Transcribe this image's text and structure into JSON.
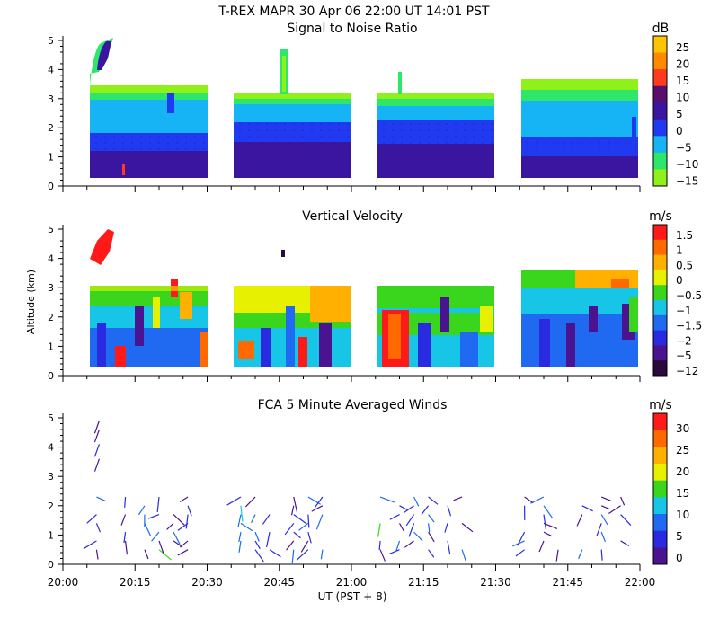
{
  "figure": {
    "title": "T-REX   MAPR 30 Apr 06   22:00 UT   14:01   PST",
    "xlabel": "UT  (PST + 8)",
    "ylabel": "Altitude (km)"
  },
  "chart_data": [
    {
      "type": "heatmap",
      "title": "Signal to Noise Ratio",
      "units": "dB",
      "x_range": [
        "20:00",
        "22:00"
      ],
      "ylim": [
        0,
        5
      ],
      "y_ticks": [
        "0",
        "1",
        "2",
        "3",
        "4",
        "5"
      ],
      "x_ticks": [
        "20:00",
        "20:15",
        "20:30",
        "20:45",
        "21:00",
        "21:15",
        "21:30",
        "21:45",
        "22:00"
      ],
      "colorbar_labels": [
        "25",
        "20",
        "15",
        "10",
        "5",
        "0",
        "−5",
        "−10",
        "−15"
      ],
      "colorbar_colors": [
        "#ffc400",
        "#ff8a00",
        "#ff3a1e",
        "#5a0f6e",
        "#3a16a0",
        "#1f3af0",
        "#17b4f5",
        "#2ee66a",
        "#90f01a"
      ],
      "data_segments_utc": [
        [
          "20:08",
          "20:27"
        ],
        [
          "20:35",
          "20:55"
        ],
        [
          "21:05",
          "21:24"
        ],
        [
          "21:35",
          "21:58"
        ]
      ],
      "layers_km": [
        {
          "from": 0.3,
          "to": 1.0,
          "value": 10
        },
        {
          "from": 1.0,
          "to": 1.7,
          "value": 5
        },
        {
          "from": 1.7,
          "to": 2.6,
          "value": 0
        },
        {
          "from": 2.6,
          "to": 3.0,
          "value": -5
        },
        {
          "from": 3.0,
          "to": 3.3,
          "value": -15
        }
      ]
    },
    {
      "type": "heatmap",
      "title": "Vertical Velocity",
      "units": "m/s",
      "x_range": [
        "20:00",
        "22:00"
      ],
      "ylim": [
        0,
        5
      ],
      "y_ticks": [
        "0",
        "1",
        "2",
        "3",
        "4",
        "5"
      ],
      "x_ticks": [
        "20:00",
        "20:15",
        "20:30",
        "20:45",
        "21:00",
        "21:15",
        "21:30",
        "21:45",
        "22:00"
      ],
      "colorbar_labels": [
        "1.5",
        "1",
        "0.5",
        "0",
        "−0.5",
        "−1",
        "−1.5",
        "−2",
        "−5",
        "−12"
      ],
      "colorbar_colors": [
        "#ff1a1a",
        "#ff6a00",
        "#ffb000",
        "#e6f000",
        "#3ad61e",
        "#17c6e6",
        "#1f6af0",
        "#2a2ae0",
        "#4a1490",
        "#2a0a3a"
      ],
      "data_segments_utc": [
        [
          "20:08",
          "20:27"
        ],
        [
          "20:35",
          "20:55"
        ],
        [
          "21:05",
          "21:24"
        ],
        [
          "21:35",
          "21:58"
        ]
      ]
    },
    {
      "type": "scatter",
      "title": "FCA 5 Minute Averaged Winds",
      "units": "m/s",
      "x_range": [
        "20:00",
        "22:00"
      ],
      "ylim": [
        0,
        5
      ],
      "y_ticks": [
        "0",
        "1",
        "2",
        "3",
        "4",
        "5"
      ],
      "x_ticks": [
        "20:00",
        "20:15",
        "20:30",
        "20:45",
        "21:00",
        "21:15",
        "21:30",
        "21:45",
        "22:00"
      ],
      "colorbar_labels": [
        "30",
        "25",
        "20",
        "15",
        "10",
        "5",
        "0"
      ],
      "colorbar_colors": [
        "#ff1a1a",
        "#ff6a00",
        "#ffb000",
        "#e6f000",
        "#3ad61e",
        "#17c6e6",
        "#1f6af0",
        "#2a2ae0",
        "#4a1490"
      ],
      "wind_barb_times_utc": [
        "20:07",
        "20:13",
        "20:17",
        "20:20",
        "20:23",
        "20:26",
        "20:37",
        "20:40",
        "20:43",
        "20:48",
        "20:51",
        "20:54",
        "21:06",
        "21:10",
        "21:13",
        "21:16",
        "21:20",
        "21:23",
        "21:36",
        "21:40",
        "21:43",
        "21:48",
        "21:52",
        "21:56"
      ],
      "wind_barb_altitudes_km": [
        0.5,
        0.8,
        1.1,
        1.4,
        1.7,
        2.0,
        2.3
      ]
    }
  ]
}
